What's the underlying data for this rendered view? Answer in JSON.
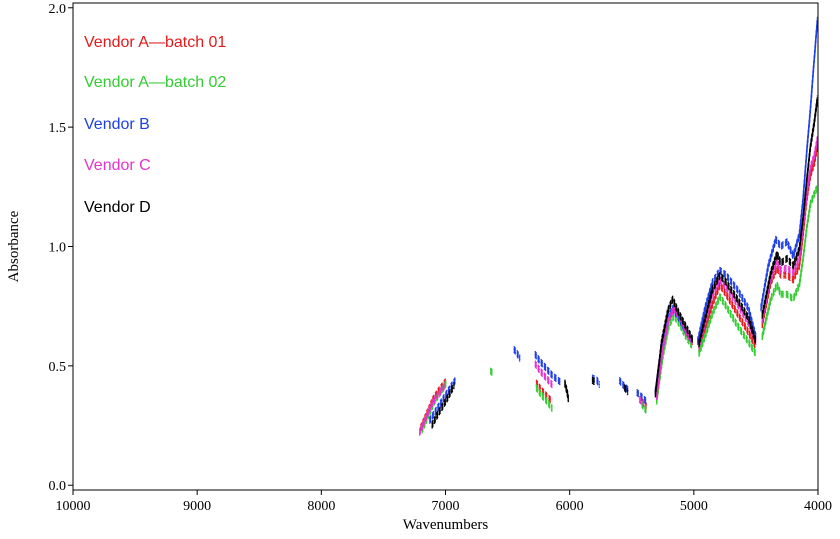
{
  "chart_data": {
    "type": "line",
    "title": "",
    "xlabel": "Wavenumbers",
    "ylabel": "Absorbance",
    "xlim": [
      10000,
      4000
    ],
    "x_reversed": true,
    "ylim": [
      -0.02,
      2.02
    ],
    "x_ticks": [
      "10000",
      "9000",
      "8000",
      "7000",
      "6000",
      "5000",
      "4000"
    ],
    "x_tick_values": [
      10000,
      9000,
      8000,
      7000,
      6000,
      5000,
      4000
    ],
    "y_ticks": [
      "0.0",
      "0.5",
      "1.0",
      "1.5",
      "2.0"
    ],
    "y_tick_values": [
      0.0,
      0.5,
      1.0,
      1.5,
      2.0
    ],
    "grid": false,
    "legend_position": "top-left",
    "line_style": "dashed",
    "series": [
      {
        "name": "Vendor A—batch 01",
        "color": "#e41a1c",
        "segments": [
          [
            [
              7200,
              0.24
            ],
            [
              7150,
              0.3
            ],
            [
              7100,
              0.36
            ],
            [
              7050,
              0.4
            ],
            [
              6990,
              0.44
            ]
          ],
          [
            [
              6270,
              0.43
            ],
            [
              6230,
              0.4
            ],
            [
              6180,
              0.37
            ],
            [
              6140,
              0.35
            ]
          ],
          [
            [
              5420,
              0.35
            ],
            [
              5380,
              0.33
            ]
          ],
          [
            [
              5300,
              0.36
            ],
            [
              5250,
              0.56
            ],
            [
              5200,
              0.7
            ],
            [
              5160,
              0.74
            ],
            [
              5110,
              0.7
            ],
            [
              5060,
              0.64
            ],
            [
              5010,
              0.6
            ]
          ],
          [
            [
              4960,
              0.57
            ],
            [
              4900,
              0.67
            ],
            [
              4850,
              0.76
            ],
            [
              4790,
              0.84
            ],
            [
              4740,
              0.8
            ],
            [
              4650,
              0.72
            ],
            [
              4560,
              0.64
            ],
            [
              4500,
              0.58
            ]
          ],
          [
            [
              4450,
              0.67
            ],
            [
              4380,
              0.85
            ],
            [
              4330,
              0.91
            ],
            [
              4300,
              0.88
            ],
            [
              4250,
              0.88
            ],
            [
              4200,
              0.86
            ],
            [
              4150,
              0.92
            ],
            [
              4120,
              1.05
            ],
            [
              4090,
              1.2
            ],
            [
              4060,
              1.3
            ],
            [
              4030,
              1.35
            ],
            [
              4005,
              1.42
            ]
          ]
        ]
      },
      {
        "name": "Vendor A—batch 02",
        "color": "#33cc33",
        "segments": [
          [
            [
              7190,
              0.23
            ],
            [
              7140,
              0.29
            ],
            [
              7090,
              0.35
            ],
            [
              7040,
              0.39
            ],
            [
              6990,
              0.43
            ]
          ],
          [
            [
              6640,
              0.48
            ],
            [
              6620,
              0.47
            ]
          ],
          [
            [
              6270,
              0.41
            ],
            [
              6230,
              0.38
            ],
            [
              6180,
              0.35
            ],
            [
              6140,
              0.32
            ]
          ],
          [
            [
              5420,
              0.34
            ],
            [
              5380,
              0.31
            ]
          ],
          [
            [
              5300,
              0.35
            ],
            [
              5250,
              0.54
            ],
            [
              5200,
              0.67
            ],
            [
              5160,
              0.71
            ],
            [
              5110,
              0.67
            ],
            [
              5060,
              0.62
            ],
            [
              5010,
              0.58
            ]
          ],
          [
            [
              4960,
              0.55
            ],
            [
              4900,
              0.64
            ],
            [
              4850,
              0.72
            ],
            [
              4790,
              0.79
            ],
            [
              4740,
              0.75
            ],
            [
              4650,
              0.67
            ],
            [
              4560,
              0.6
            ],
            [
              4500,
              0.55
            ]
          ],
          [
            [
              4450,
              0.62
            ],
            [
              4380,
              0.78
            ],
            [
              4330,
              0.84
            ],
            [
              4300,
              0.8
            ],
            [
              4250,
              0.8
            ],
            [
              4200,
              0.78
            ],
            [
              4150,
              0.84
            ],
            [
              4120,
              0.95
            ],
            [
              4090,
              1.08
            ],
            [
              4060,
              1.18
            ],
            [
              4030,
              1.22
            ],
            [
              4005,
              1.25
            ]
          ]
        ]
      },
      {
        "name": "Vendor B",
        "color": "#1f3fe6",
        "segments": [
          [
            [
              7130,
              0.27
            ],
            [
              7080,
              0.31
            ],
            [
              7020,
              0.36
            ],
            [
              6960,
              0.41
            ],
            [
              6920,
              0.44
            ]
          ],
          [
            [
              6450,
              0.57
            ],
            [
              6420,
              0.55
            ],
            [
              6400,
              0.53
            ]
          ],
          [
            [
              6280,
              0.55
            ],
            [
              6240,
              0.52
            ],
            [
              6190,
              0.49
            ],
            [
              6140,
              0.46
            ],
            [
              6070,
              0.43
            ]
          ],
          [
            [
              5820,
              0.45
            ],
            [
              5780,
              0.44
            ],
            [
              5760,
              0.42
            ]
          ],
          [
            [
              5600,
              0.44
            ],
            [
              5570,
              0.42
            ],
            [
              5530,
              0.4
            ]
          ],
          [
            [
              5460,
              0.39
            ],
            [
              5420,
              0.37
            ],
            [
              5380,
              0.35
            ]
          ],
          [
            [
              5310,
              0.39
            ],
            [
              5260,
              0.58
            ],
            [
              5210,
              0.7
            ],
            [
              5170,
              0.74
            ],
            [
              5120,
              0.7
            ],
            [
              5060,
              0.64
            ],
            [
              5010,
              0.6
            ]
          ],
          [
            [
              4970,
              0.6
            ],
            [
              4910,
              0.74
            ],
            [
              4850,
              0.85
            ],
            [
              4790,
              0.9
            ],
            [
              4740,
              0.88
            ],
            [
              4650,
              0.82
            ],
            [
              4560,
              0.74
            ],
            [
              4500,
              0.62
            ]
          ],
          [
            [
              4460,
              0.74
            ],
            [
              4400,
              0.92
            ],
            [
              4340,
              1.03
            ],
            [
              4300,
              1.0
            ],
            [
              4250,
              1.02
            ],
            [
              4200,
              0.96
            ],
            [
              4150,
              1.05
            ],
            [
              4120,
              1.2
            ],
            [
              4090,
              1.4
            ],
            [
              4060,
              1.58
            ],
            [
              4040,
              1.72
            ],
            [
              4020,
              1.85
            ],
            [
              4005,
              1.95
            ]
          ]
        ]
      },
      {
        "name": "Vendor C",
        "color": "#e633cc",
        "segments": [
          [
            [
              7210,
              0.22
            ],
            [
              7160,
              0.28
            ],
            [
              7110,
              0.34
            ],
            [
              7060,
              0.38
            ],
            [
              7000,
              0.42
            ]
          ],
          [
            [
              6280,
              0.51
            ],
            [
              6240,
              0.48
            ],
            [
              6190,
              0.45
            ],
            [
              6140,
              0.42
            ]
          ],
          [
            [
              5440,
              0.36
            ],
            [
              5400,
              0.34
            ]
          ],
          [
            [
              5300,
              0.37
            ],
            [
              5250,
              0.57
            ],
            [
              5200,
              0.7
            ],
            [
              5160,
              0.74
            ],
            [
              5110,
              0.7
            ],
            [
              5060,
              0.64
            ],
            [
              5010,
              0.6
            ]
          ],
          [
            [
              4960,
              0.58
            ],
            [
              4900,
              0.7
            ],
            [
              4850,
              0.8
            ],
            [
              4790,
              0.86
            ],
            [
              4740,
              0.83
            ],
            [
              4650,
              0.76
            ],
            [
              4560,
              0.68
            ],
            [
              4500,
              0.6
            ]
          ],
          [
            [
              4450,
              0.69
            ],
            [
              4380,
              0.87
            ],
            [
              4330,
              0.94
            ],
            [
              4300,
              0.9
            ],
            [
              4250,
              0.91
            ],
            [
              4200,
              0.89
            ],
            [
              4150,
              0.95
            ],
            [
              4120,
              1.08
            ],
            [
              4090,
              1.22
            ],
            [
              4060,
              1.33
            ],
            [
              4030,
              1.38
            ],
            [
              4005,
              1.45
            ]
          ]
        ]
      },
      {
        "name": "Vendor D",
        "color": "#000000",
        "segments": [
          [
            [
              7110,
              0.25
            ],
            [
              7060,
              0.3
            ],
            [
              7000,
              0.35
            ],
            [
              6960,
              0.39
            ],
            [
              6930,
              0.42
            ]
          ],
          [
            [
              6040,
              0.43
            ],
            [
              6020,
              0.39
            ],
            [
              6010,
              0.36
            ]
          ],
          [
            [
              5820,
              0.44
            ],
            [
              5790,
              0.43
            ]
          ],
          [
            [
              5560,
              0.41
            ],
            [
              5530,
              0.39
            ]
          ],
          [
            [
              5310,
              0.38
            ],
            [
              5260,
              0.6
            ],
            [
              5210,
              0.73
            ],
            [
              5170,
              0.78
            ],
            [
              5120,
              0.72
            ],
            [
              5060,
              0.66
            ],
            [
              5010,
              0.61
            ]
          ],
          [
            [
              4960,
              0.59
            ],
            [
              4900,
              0.72
            ],
            [
              4850,
              0.82
            ],
            [
              4790,
              0.88
            ],
            [
              4740,
              0.85
            ],
            [
              4650,
              0.78
            ],
            [
              4560,
              0.7
            ],
            [
              4500,
              0.6
            ]
          ],
          [
            [
              4450,
              0.71
            ],
            [
              4380,
              0.89
            ],
            [
              4330,
              0.97
            ],
            [
              4300,
              0.93
            ],
            [
              4250,
              0.95
            ],
            [
              4200,
              0.92
            ],
            [
              4150,
              0.99
            ],
            [
              4120,
              1.12
            ],
            [
              4090,
              1.28
            ],
            [
              4060,
              1.42
            ],
            [
              4030,
              1.52
            ],
            [
              4005,
              1.62
            ]
          ]
        ]
      }
    ]
  }
}
